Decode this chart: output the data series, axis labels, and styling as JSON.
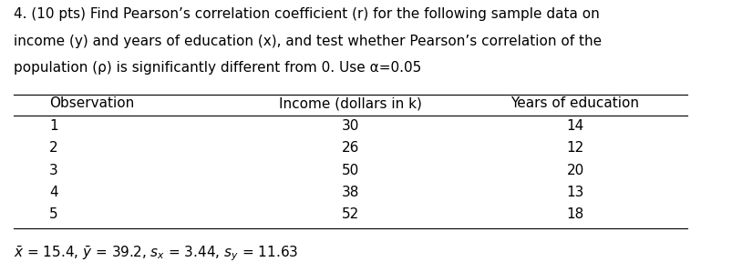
{
  "title_line1": "4. (10 pts) Find Pearson’s correlation coefficient (r) for the following sample data on",
  "title_line2": "income (y) and years of education (x), and test whether Pearson’s correlation of the",
  "title_line3": "population (ρ) is significantly different from 0. Use α=0.05",
  "col_headers": [
    "Observation",
    "Income (dollars in k)",
    "Years of education"
  ],
  "rows": [
    [
      "1",
      "30",
      "14"
    ],
    [
      "2",
      "26",
      "12"
    ],
    [
      "3",
      "50",
      "20"
    ],
    [
      "4",
      "38",
      "13"
    ],
    [
      "5",
      "52",
      "18"
    ]
  ],
  "footer": "$\\bar{x}$ = 15.4, $\\bar{y}$ = 39.2, $s_x$ = 3.44, $s_y$ = 11.63",
  "background_color": "#ffffff",
  "text_color": "#000000",
  "font_size_title": 11,
  "font_size_table": 11
}
